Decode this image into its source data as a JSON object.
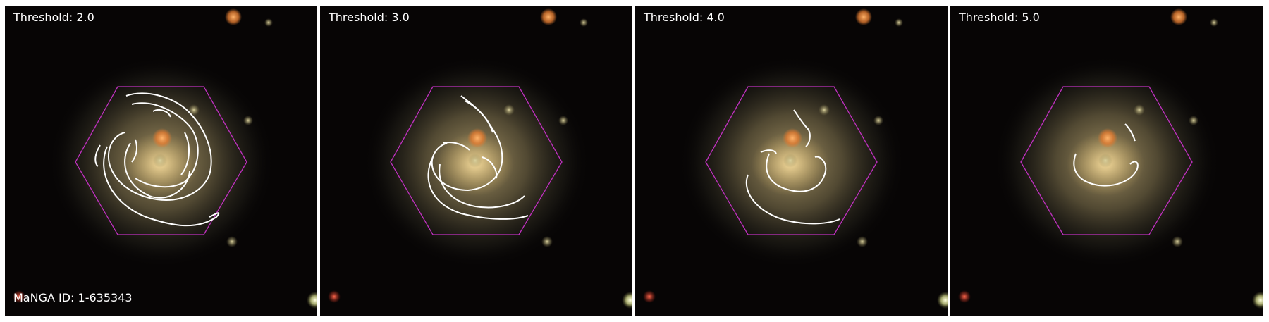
{
  "panels": [
    {
      "threshold_label": "Threshold: 2.0",
      "threshold": 2.0
    },
    {
      "threshold_label": "Threshold: 3.0",
      "threshold": 3.0
    },
    {
      "threshold_label": "Threshold: 4.0",
      "threshold": 4.0
    },
    {
      "threshold_label": "Threshold: 5.0",
      "threshold": 5.0
    }
  ],
  "manga_id_label": "MaNGA ID: 1-635343",
  "colors": {
    "hexagon": "#c030c0",
    "contour": "#ffffff",
    "label_text": "#ffffff",
    "background": "#070505"
  }
}
